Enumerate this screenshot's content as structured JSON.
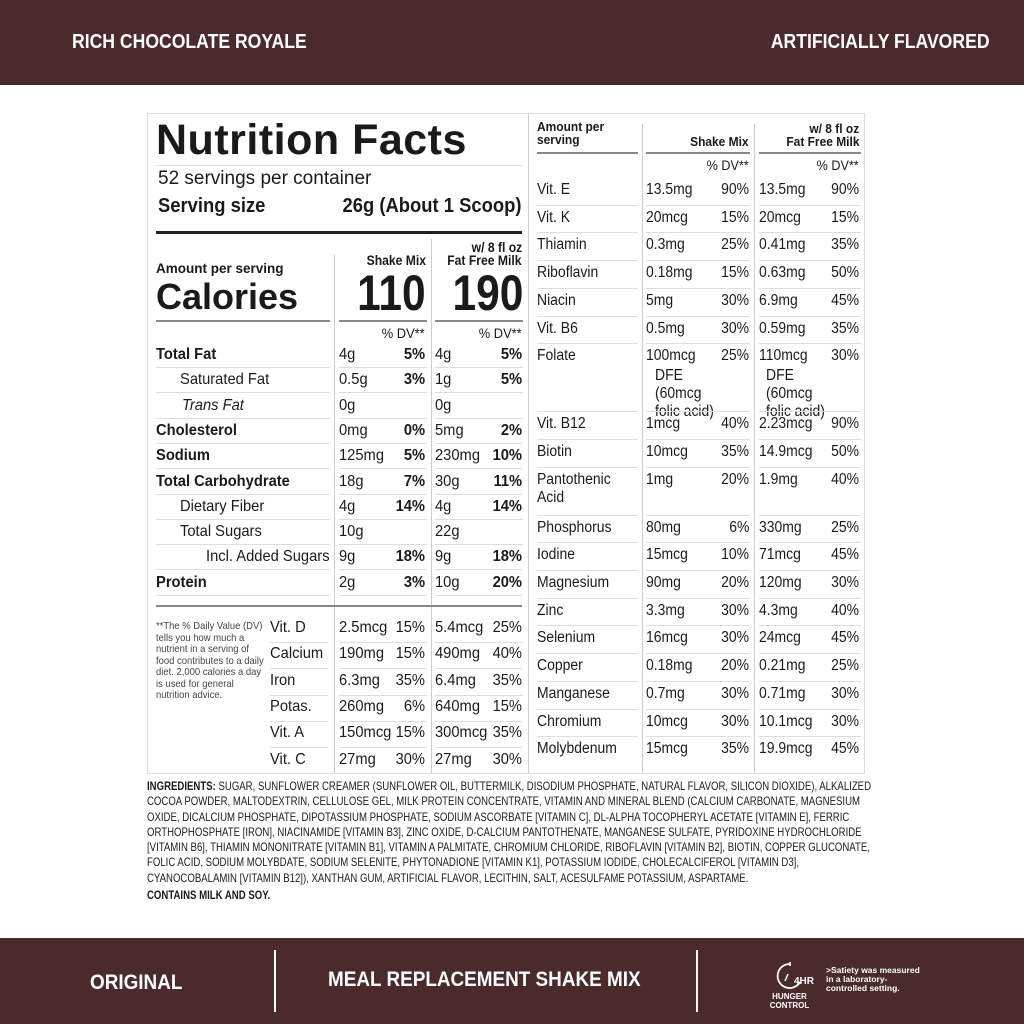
{
  "top_bar": {
    "flavor": "RICH CHOCOLATE ROYALE",
    "flavoring": "ARTIFICIALLY FLAVORED"
  },
  "label": {
    "title": "Nutrition Facts",
    "servings": "52 servings per container",
    "serving_size_label": "Serving size",
    "serving_size_value": "26g (About 1 Scoop)",
    "amount_per_serving": "Amount per serving",
    "calories_label": "Calories",
    "col_shake": "Shake Mix",
    "col_milk_line1": "w/ 8 fl oz",
    "col_milk_line2": "Fat Free Milk",
    "calories_shake": "110",
    "calories_milk": "190",
    "dv_header": "% DV**",
    "nutrients": [
      {
        "name": "Total Fat",
        "bold": true,
        "indent": 0,
        "s_amt": "4g",
        "s_dv": "5%",
        "m_amt": "4g",
        "m_dv": "5%"
      },
      {
        "name": "Saturated Fat",
        "bold": false,
        "indent": 1,
        "s_amt": "0.5g",
        "s_dv": "3%",
        "m_amt": "1g",
        "m_dv": "5%"
      },
      {
        "name": "Trans Fat",
        "bold": false,
        "indent": 2,
        "s_amt": "0g",
        "s_dv": "",
        "m_amt": "0g",
        "m_dv": ""
      },
      {
        "name": "Cholesterol",
        "bold": true,
        "indent": 0,
        "s_amt": "0mg",
        "s_dv": "0%",
        "m_amt": "5mg",
        "m_dv": "2%"
      },
      {
        "name": "Sodium",
        "bold": true,
        "indent": 0,
        "s_amt": "125mg",
        "s_dv": "5%",
        "m_amt": "230mg",
        "m_dv": "10%"
      },
      {
        "name": "Total Carbohydrate",
        "bold": true,
        "indent": 0,
        "s_amt": "18g",
        "s_dv": "7%",
        "m_amt": "30g",
        "m_dv": "11%"
      },
      {
        "name": "Dietary Fiber",
        "bold": false,
        "indent": 1,
        "s_amt": "4g",
        "s_dv": "14%",
        "m_amt": "4g",
        "m_dv": "14%"
      },
      {
        "name": "Total Sugars",
        "bold": false,
        "indent": 1,
        "s_amt": "10g",
        "s_dv": "",
        "m_amt": "22g",
        "m_dv": ""
      },
      {
        "name": "Incl. Added Sugars",
        "bold": false,
        "indent": 3,
        "s_amt": "9g",
        "s_dv": "18%",
        "m_amt": "9g",
        "m_dv": "18%"
      },
      {
        "name": "Protein",
        "bold": true,
        "indent": 0,
        "s_amt": "2g",
        "s_dv": "3%",
        "m_amt": "10g",
        "m_dv": "20%"
      }
    ],
    "footnote": "**The % Daily Value (DV) tells you how much a nutrient in a serving of food contributes to a daily diet. 2,000 calories a day is used for general nutrition advice.",
    "vitamins_left": [
      {
        "name": "Vit. D",
        "s_amt": "2.5mcg",
        "s_dv": "15%",
        "m_amt": "5.4mcg",
        "m_dv": "25%"
      },
      {
        "name": "Calcium",
        "s_amt": "190mg",
        "s_dv": "15%",
        "m_amt": "490mg",
        "m_dv": "40%"
      },
      {
        "name": "Iron",
        "s_amt": "6.3mg",
        "s_dv": "35%",
        "m_amt": "6.4mg",
        "m_dv": "35%"
      },
      {
        "name": "Potas.",
        "s_amt": "260mg",
        "s_dv": "6%",
        "m_amt": "640mg",
        "m_dv": "15%"
      },
      {
        "name": "Vit. A",
        "s_amt": "150mcg",
        "s_dv": "15%",
        "m_amt": "300mcg",
        "m_dv": "35%"
      },
      {
        "name": "Vit. C",
        "s_amt": "27mg",
        "s_dv": "30%",
        "m_amt": "27mg",
        "m_dv": "30%"
      }
    ],
    "right_header": {
      "amount": "Amount per serving",
      "shake": "Shake Mix",
      "milk_line1": "w/ 8 fl oz",
      "milk_line2": "Fat Free Milk",
      "dv": "% DV**"
    },
    "vitamins_right": [
      {
        "name": "Vit. E",
        "s_amt": "13.5mg",
        "s_dv": "90%",
        "m_amt": "13.5mg",
        "m_dv": "90%"
      },
      {
        "name": "Vit. K",
        "s_amt": "20mcg",
        "s_dv": "15%",
        "m_amt": "20mcg",
        "m_dv": "15%"
      },
      {
        "name": "Thiamin",
        "s_amt": "0.3mg",
        "s_dv": "25%",
        "m_amt": "0.41mg",
        "m_dv": "35%"
      },
      {
        "name": "Riboflavin",
        "s_amt": "0.18mg",
        "s_dv": "15%",
        "m_amt": "0.63mg",
        "m_dv": "50%"
      },
      {
        "name": "Niacin",
        "s_amt": "5mg",
        "s_dv": "30%",
        "m_amt": "6.9mg",
        "m_dv": "45%"
      },
      {
        "name": "Vit. B6",
        "s_amt": "0.5mg",
        "s_dv": "30%",
        "m_amt": "0.59mg",
        "m_dv": "35%"
      },
      {
        "name": "Folate",
        "s_amt": "100mcg",
        "s_note": "DFE (60mcg folic acid)",
        "s_dv": "25%",
        "m_amt": "110mcg",
        "m_note": "DFE (60mcg folic acid)",
        "m_dv": "30%"
      },
      {
        "name": "Vit. B12",
        "s_amt": "1mcg",
        "s_dv": "40%",
        "m_amt": "2.23mcg",
        "m_dv": "90%"
      },
      {
        "name": "Biotin",
        "s_amt": "10mcg",
        "s_dv": "35%",
        "m_amt": "14.9mcg",
        "m_dv": "50%"
      },
      {
        "name": "Pantothenic Acid",
        "s_amt": "1mg",
        "s_dv": "20%",
        "m_amt": "1.9mg",
        "m_dv": "40%"
      },
      {
        "name": "Phosphorus",
        "s_amt": "80mg",
        "s_dv": "6%",
        "m_amt": "330mg",
        "m_dv": "25%"
      },
      {
        "name": "Iodine",
        "s_amt": "15mcg",
        "s_dv": "10%",
        "m_amt": "71mcg",
        "m_dv": "45%"
      },
      {
        "name": "Magnesium",
        "s_amt": "90mg",
        "s_dv": "20%",
        "m_amt": "120mg",
        "m_dv": "30%"
      },
      {
        "name": "Zinc",
        "s_amt": "3.3mg",
        "s_dv": "30%",
        "m_amt": "4.3mg",
        "m_dv": "40%"
      },
      {
        "name": "Selenium",
        "s_amt": "16mcg",
        "s_dv": "30%",
        "m_amt": "24mcg",
        "m_dv": "45%"
      },
      {
        "name": "Copper",
        "s_amt": "0.18mg",
        "s_dv": "20%",
        "m_amt": "0.21mg",
        "m_dv": "25%"
      },
      {
        "name": "Manganese",
        "s_amt": "0.7mg",
        "s_dv": "30%",
        "m_amt": "0.71mg",
        "m_dv": "30%"
      },
      {
        "name": "Chromium",
        "s_amt": "10mcg",
        "s_dv": "30%",
        "m_amt": "10.1mcg",
        "m_dv": "30%"
      },
      {
        "name": "Molybdenum",
        "s_amt": "15mcg",
        "s_dv": "35%",
        "m_amt": "19.9mcg",
        "m_dv": "45%"
      }
    ]
  },
  "ingredients": {
    "label": "INGREDIENTS:",
    "text": " SUGAR, SUNFLOWER CREAMER (SUNFLOWER OIL, BUTTERMILK, DISODIUM PHOSPHATE, NATURAL FLAVOR, SILICON DIOXIDE), ALKALIZED COCOA POWDER, MALTODEXTRIN, CELLULOSE GEL, MILK PROTEIN CONCENTRATE, VITAMIN AND MINERAL BLEND (CALCIUM CARBONATE, MAGNESIUM OXIDE, DICALCIUM PHOSPHATE, DIPOTASSIUM PHOSPHATE, SODIUM ASCORBATE [VITAMIN C], DL-ALPHA TOCOPHERYL ACETATE [VITAMIN E], FERRIC ORTHOPHOSPHATE [IRON], NIACINAMIDE [VITAMIN B3], ZINC OXIDE, D-CALCIUM PANTOTHENATE, MANGANESE SULFATE, PYRIDOXINE HYDROCHLORIDE [VITAMIN B6], THIAMIN MONONITRATE [VITAMIN B1], VITAMIN A PALMITATE, CHROMIUM CHLORIDE, RIBOFLAVIN [VITAMIN B2], BIOTIN, COPPER GLUCONATE, FOLIC ACID, SODIUM MOLYBDATE, SODIUM SELENITE, PHYTONADIONE [VITAMIN K1], POTASSIUM IODIDE, CHOLECALCIFEROL [VITAMIN D3], CYANOCOBALAMIN [VITAMIN B12]), XANTHAN GUM, ARTIFICIAL FLAVOR, LECITHIN, SALT, ACESULFAME POTASSIUM, ASPARTAME.",
    "allergens": "CONTAINS MILK AND SOY."
  },
  "bottom_bar": {
    "variant": "ORIGINAL",
    "product": "MEAL REPLACEMENT SHAKE MIX",
    "badge_number": "4HR",
    "badge_label": "HUNGER CONTROL",
    "satiety_note": ">Satiety was measured in a laboratory-controlled setting."
  },
  "colors": {
    "brand_bar": "#4a2a2b"
  }
}
